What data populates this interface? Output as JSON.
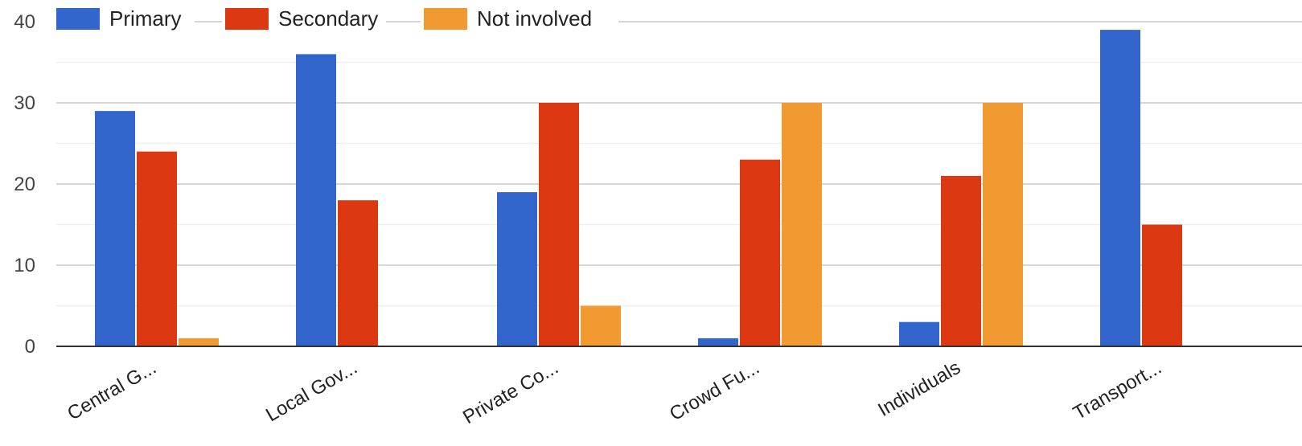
{
  "chart_data": {
    "type": "bar",
    "categories": [
      "Central G...",
      "Local Gov...",
      "Private Co...",
      "Crowd Fu...",
      "Individuals",
      "Transport..."
    ],
    "series": [
      {
        "name": "Primary",
        "color": "#3366cc",
        "values": [
          29,
          36,
          19,
          1,
          3,
          39
        ]
      },
      {
        "name": "Secondary",
        "color": "#dc3912",
        "values": [
          24,
          18,
          30,
          23,
          21,
          15
        ]
      },
      {
        "name": "Not involved",
        "color": "#f19a32",
        "values": [
          1,
          0,
          5,
          30,
          30,
          0
        ]
      }
    ],
    "title": "",
    "xlabel": "",
    "ylabel": "",
    "ylim": [
      0,
      40
    ],
    "yticks": [
      0,
      10,
      20,
      30,
      40
    ],
    "grid": true,
    "legend_position": "top-left"
  }
}
